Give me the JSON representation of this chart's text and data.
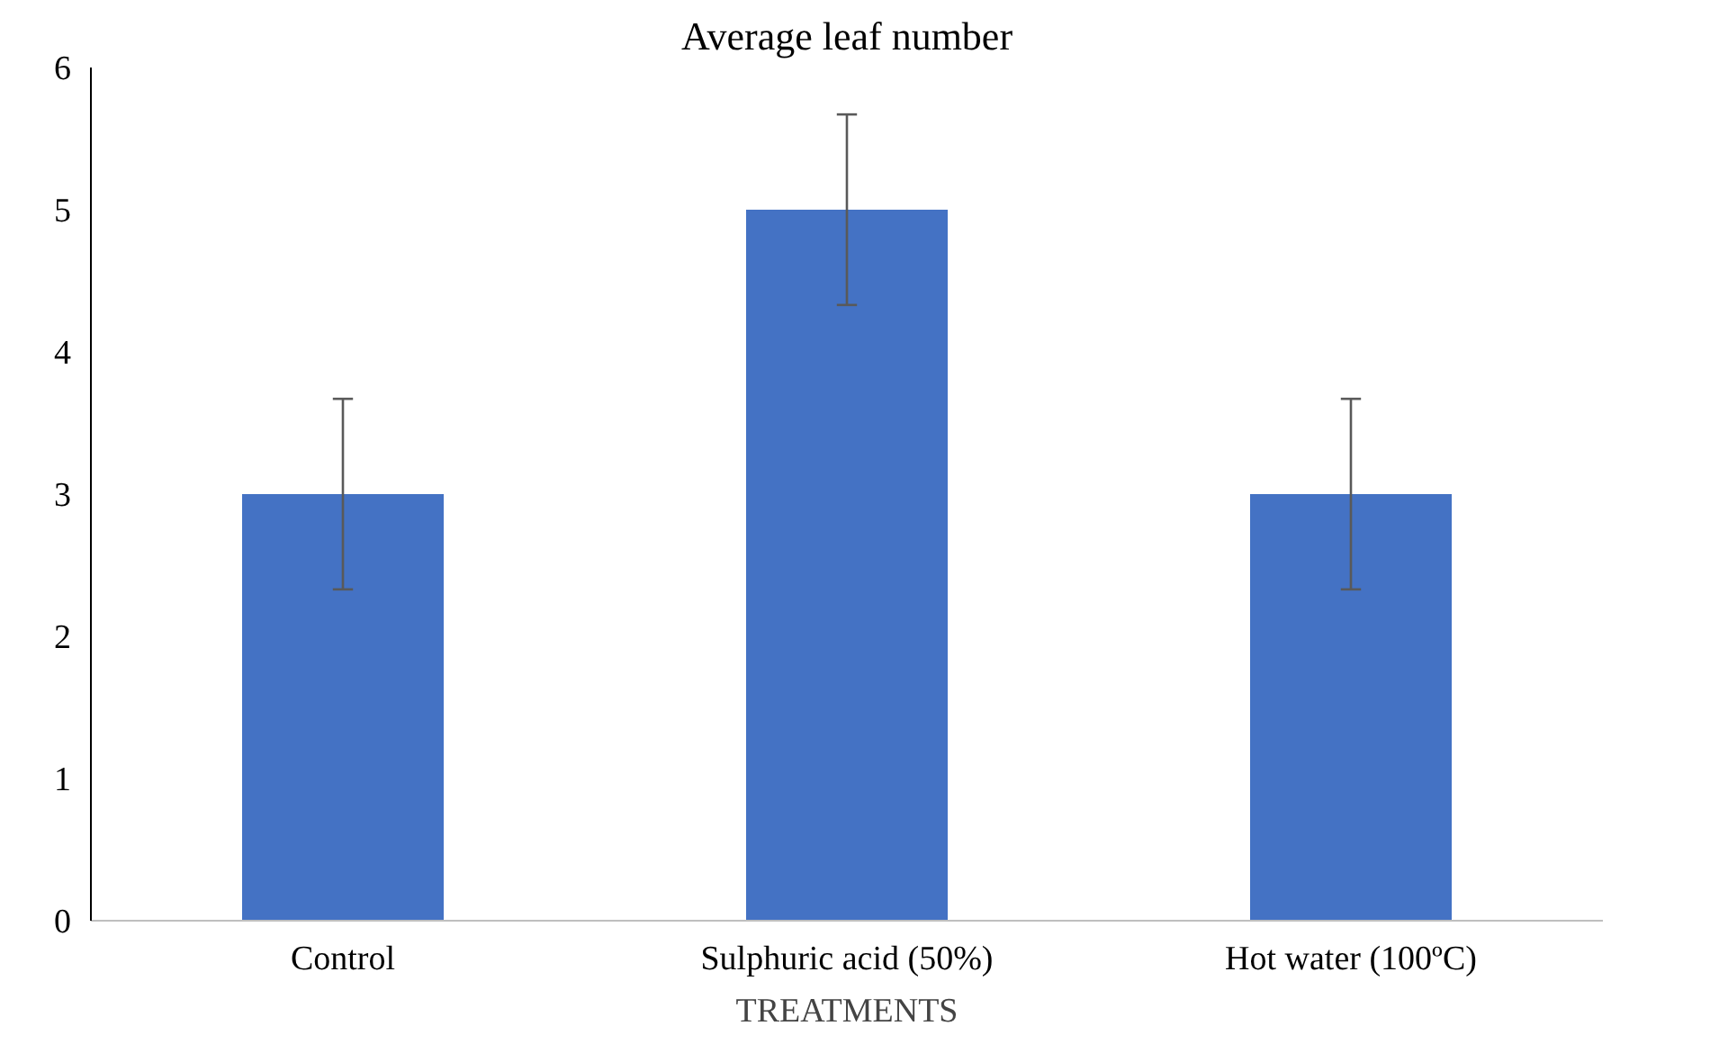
{
  "chart_data": {
    "type": "bar",
    "title": "Average leaf number",
    "xlabel": "TREATMENTS",
    "categories": [
      "Control",
      "Sulphuric acid (50%)",
      "Hot water (100ºC)"
    ],
    "values": [
      3,
      5,
      3
    ],
    "errors": [
      0.67,
      0.67,
      0.67
    ],
    "color": "#4472c4",
    "ylim": [
      0,
      6
    ],
    "yticks": [
      0,
      1,
      2,
      3,
      4,
      5,
      6
    ],
    "grid": false
  }
}
